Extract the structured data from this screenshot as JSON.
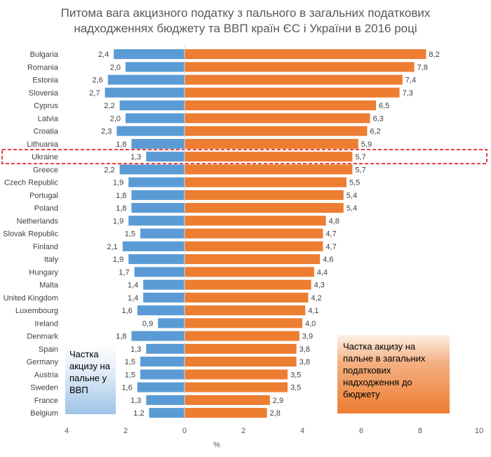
{
  "title": {
    "line1": "Питома вага акцизного податку з пального в загальних податкових",
    "line2": "надходженнях бюджету та ВВП країн ЄС і України в 2016 році"
  },
  "chart_data": {
    "type": "bar",
    "orientation": "horizontal-diverging",
    "title": "Питома вага акцизного податку з пального в загальних податкових надходженнях бюджету та ВВП країн ЄС і України в 2016 році",
    "xlabel": "%",
    "xlim": [
      -4,
      10
    ],
    "xticks": [
      -4,
      -2,
      0,
      2,
      4,
      6,
      8,
      10
    ],
    "xtick_labels": [
      "4",
      "2",
      "0",
      "2",
      "4",
      "6",
      "8",
      "10"
    ],
    "categories": [
      "Bulgaria",
      "Romania",
      "Estonia",
      "Slovenia",
      "Cyprus",
      "Latvia",
      "Croatia",
      "Lithuania",
      "Ukraine",
      "Greece",
      "Czech Republic",
      "Portugal",
      "Poland",
      "Netherlands",
      "Slovak Republic",
      "Finland",
      "Italy",
      "Hungary",
      "Malta",
      "United Kingdom",
      "Luxembourg",
      "Ireland",
      "Denmark",
      "Spain",
      "Germany",
      "Austria",
      "Sweden",
      "France",
      "Belgium"
    ],
    "series": [
      {
        "color": "#5b9bd5",
        "values": [
          2.4,
          2.0,
          2.6,
          2.7,
          2.2,
          2.0,
          2.3,
          1.8,
          1.3,
          2.2,
          1.9,
          1.8,
          1.8,
          1.9,
          1.5,
          2.1,
          1.9,
          1.7,
          1.4,
          1.4,
          1.6,
          0.9,
          1.8,
          1.3,
          1.5,
          1.5,
          1.6,
          1.3,
          1.2
        ],
        "labels": [
          "2,4",
          "2,0",
          "2,6",
          "2,7",
          "2,2",
          "2,0",
          "2,3",
          "1,8",
          "1,3",
          "2,2",
          "1,9",
          "1,8",
          "1,8",
          "1,9",
          "1,5",
          "2,1",
          "1,9",
          "1,7",
          "1,4",
          "1,4",
          "1,6",
          "0,9",
          "1,8",
          "1,3",
          "1,5",
          "1,5",
          "1,6",
          "1,3",
          "1,2"
        ]
      },
      {
        "color": "#ed7d31",
        "values": [
          8.2,
          7.8,
          7.4,
          7.3,
          6.5,
          6.3,
          6.2,
          5.9,
          5.7,
          5.7,
          5.5,
          5.4,
          5.4,
          4.8,
          4.7,
          4.7,
          4.6,
          4.4,
          4.3,
          4.2,
          4.1,
          4.0,
          3.9,
          3.8,
          3.8,
          3.5,
          3.5,
          2.9,
          2.8
        ],
        "labels": [
          "8,2",
          "7,8",
          "7,4",
          "7,3",
          "6,5",
          "6,3",
          "6,2",
          "5,9",
          "5,7",
          "5,7",
          "5,5",
          "5,4",
          "5,4",
          "4,8",
          "4,7",
          "4,7",
          "4,6",
          "4,4",
          "4,3",
          "4,2",
          "4,1",
          "4,0",
          "3,9",
          "3,8",
          "3,8",
          "3,5",
          "3,5",
          "2,9",
          "2,8"
        ]
      }
    ],
    "highlight": "Ukraine",
    "annotations": [
      {
        "text": "Частка акцизу на пальне у ВВП",
        "color": "#9dc3e6"
      },
      {
        "text": "Частка акцизу на пальне в загальних податкових надходження до бюджету",
        "color": "#ed7d31"
      }
    ],
    "grid": false,
    "legend": "none"
  },
  "boxes": {
    "gdp": "Частка акцизу на пальне у ВВП",
    "revenue": "Частка акцизу на пальне в загальних податкових надходження до бюджету"
  }
}
